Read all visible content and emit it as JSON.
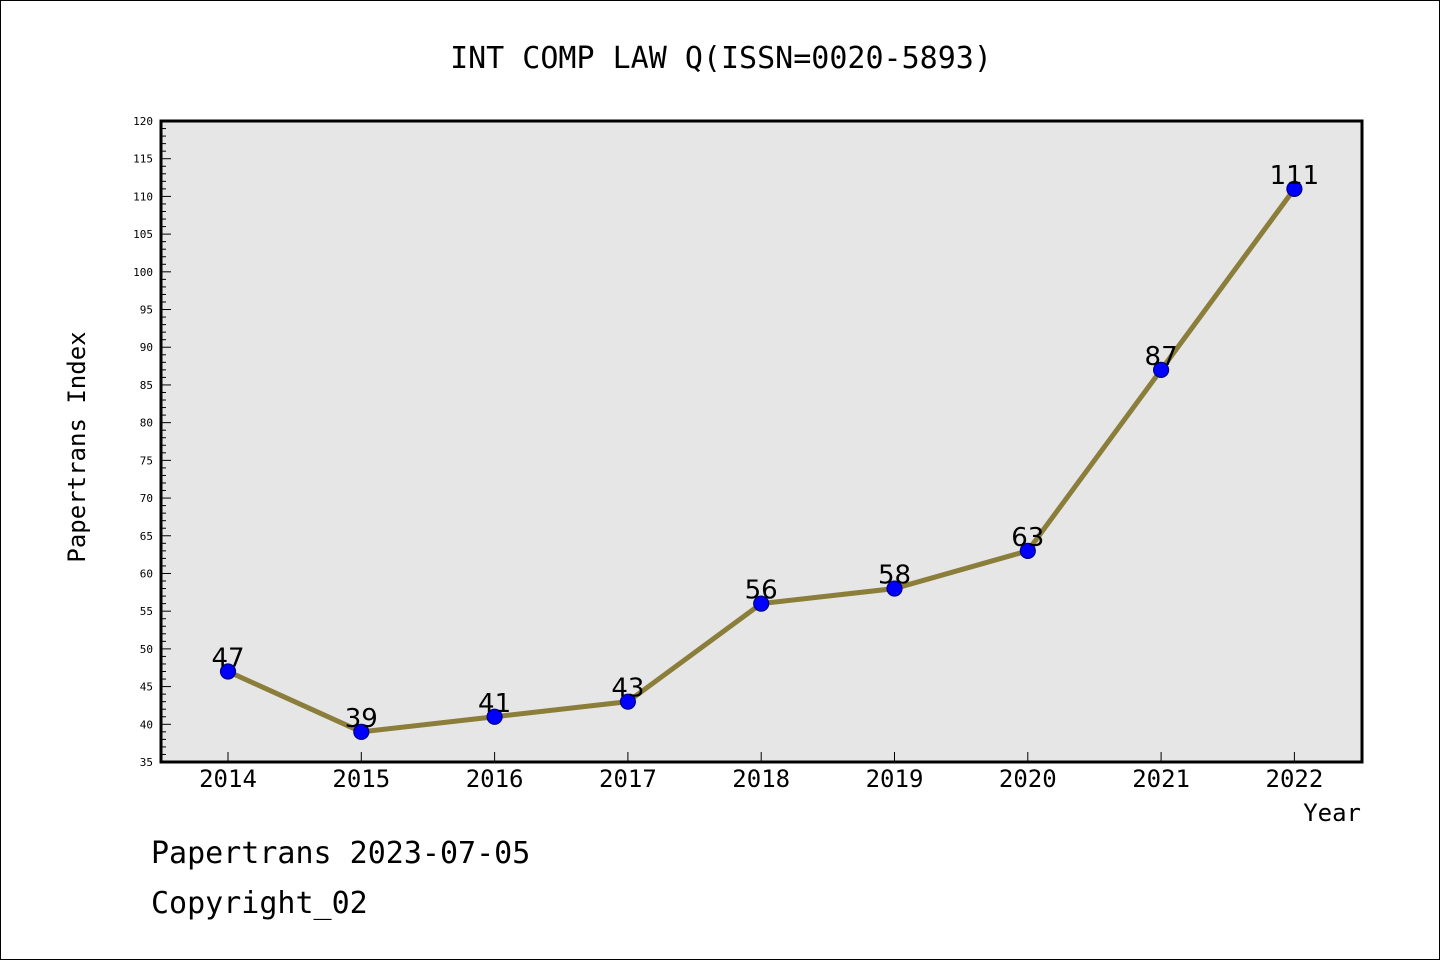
{
  "chart_data": {
    "type": "line",
    "title": "INT COMP LAW Q(ISSN=0020-5893)",
    "xlabel": "Year",
    "ylabel": "Papertrans Index",
    "categories": [
      "2014",
      "2015",
      "2016",
      "2017",
      "2018",
      "2019",
      "2020",
      "2021",
      "2022"
    ],
    "series": [
      {
        "values": [
          47,
          39,
          41,
          43,
          56,
          58,
          63,
          87,
          111
        ]
      }
    ],
    "data_labels": [
      "47",
      "39",
      "41",
      "43",
      "56",
      "58",
      "63",
      "87",
      "111"
    ],
    "ylim": [
      35,
      120
    ],
    "yticks": [
      "35",
      "40",
      "45",
      "50",
      "55",
      "60",
      "65",
      "70",
      "75",
      "80",
      "85",
      "90",
      "95",
      "100",
      "105",
      "110",
      "115",
      "120"
    ],
    "grid": false,
    "legend": "none",
    "colors": {
      "plot_background": "#e6e6e6",
      "line": "#8b7d3a",
      "marker_fill": "#0000ff",
      "marker_edge": "#000080"
    }
  },
  "footer": {
    "line1": "Papertrans 2023-07-05",
    "line2": "Copyright_02"
  }
}
